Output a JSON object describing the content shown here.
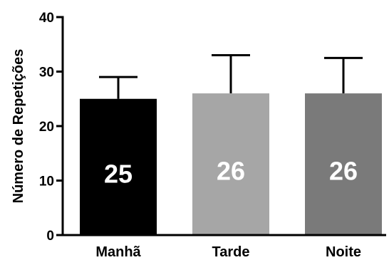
{
  "chart_data": {
    "type": "bar",
    "title": "",
    "xlabel": "",
    "ylabel": "Número de Repetições",
    "ylim": [
      0,
      40
    ],
    "yticks": [
      0,
      10,
      20,
      30,
      40
    ],
    "categories": [
      "Manhã",
      "Tarde",
      "Noite"
    ],
    "values": [
      25,
      26,
      26
    ],
    "error_upper": [
      29,
      33,
      32.5
    ],
    "data_labels": [
      "25",
      "26",
      "26"
    ],
    "colors": [
      "#000000",
      "#a6a6a6",
      "#7a7a7a"
    ],
    "grid": false,
    "legend": "none"
  }
}
